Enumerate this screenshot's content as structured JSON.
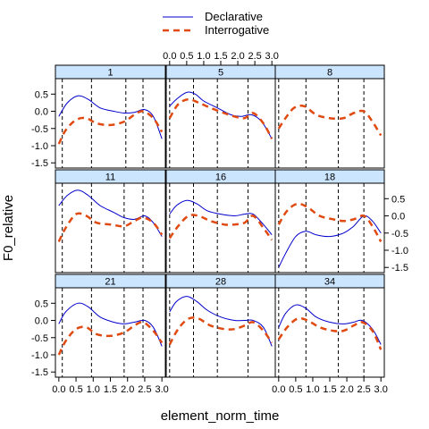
{
  "chart_data": {
    "type": "line",
    "xlabel": "element_norm_time",
    "ylabel": "F0_relative",
    "xlim": [
      -0.1,
      3.1
    ],
    "ylim": [
      -1.65,
      0.95
    ],
    "x_ticks": [
      0.0,
      0.5,
      1.0,
      1.5,
      2.0,
      2.5,
      3.0
    ],
    "x_tick_labels": [
      "0.0",
      "0.5",
      "1.0",
      "1.5",
      "2.0",
      "2.5",
      "3.0"
    ],
    "y_ticks": [
      -1.5,
      -1.0,
      -0.5,
      0.0,
      0.5
    ],
    "y_tick_labels": [
      "-1.5",
      "-1.0",
      "-0.5",
      "0.0",
      "0.5"
    ],
    "legend": {
      "placement": "top",
      "entries": [
        {
          "name": "Declarative",
          "color": "#0000cc",
          "style": "solid"
        },
        {
          "name": "Interrogative",
          "color": "#e04a10",
          "style": "dashed"
        }
      ]
    },
    "colors": {
      "strip": "#cce5ff",
      "declarative": "#0000cc",
      "interrogative": "#e04a10"
    },
    "panels": [
      {
        "label": "1",
        "vlines": [
          0.1,
          0.95,
          1.95,
          2.45
        ],
        "series": [
          {
            "name": "Declarative",
            "x": [
              0.0,
              0.25,
              0.55,
              0.85,
              1.2,
              1.6,
              1.9,
              2.2,
              2.5,
              2.75,
              3.0
            ],
            "y": [
              -0.15,
              0.25,
              0.45,
              0.35,
              0.1,
              0.0,
              -0.05,
              -0.03,
              0.05,
              -0.15,
              -0.8
            ]
          },
          {
            "name": "Interrogative",
            "x": [
              0.0,
              0.2,
              0.5,
              0.8,
              1.1,
              1.5,
              1.9,
              2.2,
              2.45,
              2.75,
              3.0
            ],
            "y": [
              -0.95,
              -0.55,
              -0.25,
              -0.2,
              -0.35,
              -0.4,
              -0.3,
              -0.1,
              0.0,
              -0.2,
              -0.6
            ]
          }
        ]
      },
      {
        "label": "5",
        "vlines": [
          0.0,
          0.7,
          1.4,
          2.3
        ],
        "series": [
          {
            "name": "Declarative",
            "x": [
              0.0,
              0.2,
              0.5,
              0.75,
              1.0,
              1.4,
              1.8,
              2.1,
              2.4,
              2.7,
              3.0
            ],
            "y": [
              0.15,
              0.35,
              0.55,
              0.5,
              0.3,
              0.1,
              -0.1,
              -0.15,
              -0.1,
              -0.3,
              -0.8
            ]
          },
          {
            "name": "Interrogative",
            "x": [
              0.0,
              0.25,
              0.55,
              0.85,
              1.2,
              1.6,
              1.9,
              2.2,
              2.45,
              2.75,
              3.0
            ],
            "y": [
              -0.2,
              0.2,
              0.35,
              0.25,
              0.1,
              -0.05,
              -0.15,
              -0.2,
              -0.05,
              -0.35,
              -0.8
            ]
          }
        ]
      },
      {
        "label": "8",
        "vlines": [
          0.0,
          0.8,
          1.75,
          2.5
        ],
        "series": [
          {
            "name": "Interrogative",
            "x": [
              0.0,
              0.2,
              0.45,
              0.75,
              1.1,
              1.5,
              1.9,
              2.2,
              2.5,
              2.75,
              3.0
            ],
            "y": [
              -0.5,
              -0.2,
              0.1,
              0.15,
              -0.1,
              -0.2,
              -0.2,
              -0.05,
              0.0,
              -0.3,
              -0.7
            ]
          }
        ]
      },
      {
        "label": "11",
        "vlines": [
          0.1,
          0.95,
          1.9,
          2.45
        ],
        "series": [
          {
            "name": "Declarative",
            "x": [
              0.0,
              0.25,
              0.55,
              0.85,
              1.2,
              1.6,
              1.9,
              2.2,
              2.5,
              2.75,
              3.0
            ],
            "y": [
              0.3,
              0.6,
              0.75,
              0.6,
              0.3,
              0.1,
              -0.05,
              -0.1,
              0.0,
              -0.2,
              -0.6
            ]
          },
          {
            "name": "Interrogative",
            "x": [
              0.0,
              0.2,
              0.5,
              0.8,
              1.1,
              1.5,
              1.9,
              2.2,
              2.45,
              2.75,
              3.0
            ],
            "y": [
              -0.75,
              -0.35,
              0.05,
              0.0,
              -0.2,
              -0.25,
              -0.3,
              -0.15,
              -0.05,
              -0.2,
              -0.55
            ]
          }
        ]
      },
      {
        "label": "16",
        "vlines": [
          0.0,
          0.7,
          1.4,
          2.3
        ],
        "series": [
          {
            "name": "Declarative",
            "x": [
              0.0,
              0.2,
              0.5,
              0.8,
              1.1,
              1.5,
              1.9,
              2.2,
              2.45,
              2.75,
              3.0
            ],
            "y": [
              0.05,
              0.3,
              0.45,
              0.35,
              0.15,
              0.05,
              0.0,
              0.05,
              0.05,
              -0.25,
              -0.55
            ]
          },
          {
            "name": "Interrogative",
            "x": [
              0.0,
              0.25,
              0.55,
              0.85,
              1.2,
              1.6,
              1.9,
              2.2,
              2.45,
              2.75,
              3.0
            ],
            "y": [
              -0.65,
              -0.3,
              0.0,
              0.0,
              -0.15,
              -0.25,
              -0.25,
              -0.2,
              0.0,
              -0.35,
              -0.7
            ]
          }
        ]
      },
      {
        "label": "18",
        "vlines": [
          0.0,
          0.8,
          1.75,
          2.5
        ],
        "series": [
          {
            "name": "Declarative",
            "x": [
              0.0,
              0.2,
              0.5,
              0.8,
              1.1,
              1.5,
              1.9,
              2.2,
              2.5,
              2.75,
              3.0
            ],
            "y": [
              -1.5,
              -1.1,
              -0.6,
              -0.45,
              -0.55,
              -0.6,
              -0.5,
              -0.3,
              0.0,
              -0.15,
              -0.5
            ]
          },
          {
            "name": "Interrogative",
            "x": [
              0.0,
              0.25,
              0.55,
              0.85,
              1.2,
              1.6,
              1.9,
              2.2,
              2.5,
              2.75,
              3.0
            ],
            "y": [
              -0.25,
              0.15,
              0.35,
              0.25,
              0.0,
              -0.1,
              -0.15,
              -0.1,
              0.0,
              -0.3,
              -0.75
            ]
          }
        ]
      },
      {
        "label": "21",
        "vlines": [
          0.1,
          0.95,
          1.9,
          2.45
        ],
        "series": [
          {
            "name": "Declarative",
            "x": [
              0.0,
              0.2,
              0.55,
              0.85,
              1.2,
              1.6,
              1.9,
              2.2,
              2.5,
              2.75,
              3.0
            ],
            "y": [
              -0.1,
              0.25,
              0.5,
              0.4,
              0.1,
              -0.05,
              -0.1,
              -0.05,
              0.0,
              -0.2,
              -0.75
            ]
          },
          {
            "name": "Interrogative",
            "x": [
              0.0,
              0.2,
              0.5,
              0.8,
              1.1,
              1.5,
              1.9,
              2.2,
              2.45,
              2.75,
              3.0
            ],
            "y": [
              -1.0,
              -0.6,
              -0.25,
              -0.2,
              -0.4,
              -0.45,
              -0.35,
              -0.15,
              -0.05,
              -0.3,
              -0.65
            ]
          }
        ]
      },
      {
        "label": "28",
        "vlines": [
          0.0,
          0.7,
          1.4,
          2.3
        ],
        "series": [
          {
            "name": "Declarative",
            "x": [
              0.0,
              0.2,
              0.5,
              0.8,
              1.1,
              1.5,
              1.9,
              2.2,
              2.45,
              2.75,
              3.0
            ],
            "y": [
              0.25,
              0.55,
              0.7,
              0.55,
              0.3,
              0.1,
              0.0,
              0.0,
              0.0,
              -0.2,
              -0.75
            ]
          },
          {
            "name": "Interrogative",
            "x": [
              0.0,
              0.25,
              0.55,
              0.85,
              1.2,
              1.6,
              1.9,
              2.2,
              2.45,
              2.75,
              3.0
            ],
            "y": [
              -0.7,
              -0.25,
              0.05,
              0.05,
              -0.15,
              -0.25,
              -0.25,
              -0.15,
              -0.05,
              -0.3,
              -0.65
            ]
          }
        ]
      },
      {
        "label": "34",
        "vlines": [
          0.0,
          0.8,
          1.75,
          2.5
        ],
        "series": [
          {
            "name": "Declarative",
            "x": [
              0.0,
              0.2,
              0.5,
              0.8,
              1.1,
              1.5,
              1.9,
              2.2,
              2.45,
              2.75,
              3.0
            ],
            "y": [
              -0.2,
              0.2,
              0.45,
              0.35,
              0.1,
              -0.05,
              -0.1,
              -0.05,
              0.0,
              -0.25,
              -0.7
            ]
          },
          {
            "name": "Interrogative",
            "x": [
              0.0,
              0.25,
              0.55,
              0.85,
              1.2,
              1.6,
              1.9,
              2.2,
              2.45,
              2.75,
              3.0
            ],
            "y": [
              -0.55,
              -0.2,
              0.05,
              0.0,
              -0.2,
              -0.3,
              -0.3,
              -0.15,
              -0.05,
              -0.3,
              -0.85
            ]
          }
        ]
      }
    ]
  }
}
